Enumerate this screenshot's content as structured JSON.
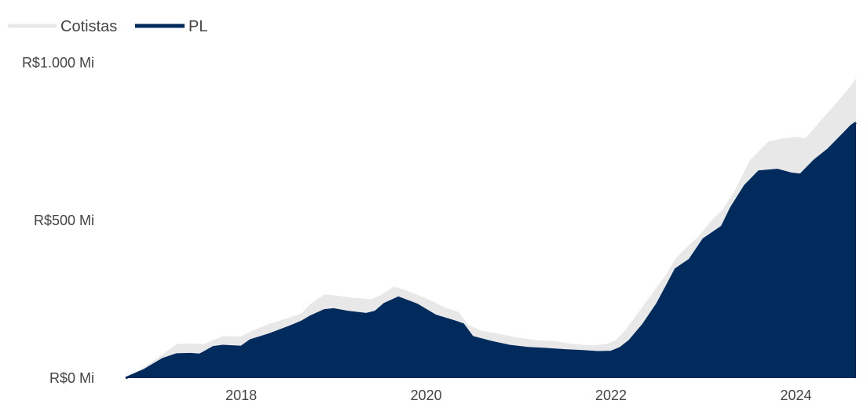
{
  "chart_data": {
    "type": "area",
    "title": "",
    "xlabel": "",
    "ylabel": "",
    "legend": {
      "placement": "top-left"
    },
    "grid": false,
    "xlim": [
      2016.75,
      2024.65
    ],
    "ylim": [
      0,
      1000
    ],
    "y_ticks": [
      0,
      500,
      1000
    ],
    "y_tick_labels": [
      "R$0 Mi",
      "R$500 Mi",
      "R$1.000 Mi"
    ],
    "x_ticks": [
      2018,
      2020,
      2022,
      2024
    ],
    "x_tick_labels": [
      "2018",
      "2020",
      "2022",
      "2024"
    ],
    "series": [
      {
        "name": "Cotistas",
        "color": "#e8e8e8",
        "points": [
          [
            2016.75,
            0
          ],
          [
            2016.95,
            35
          ],
          [
            2017.15,
            75
          ],
          [
            2017.3,
            108
          ],
          [
            2017.45,
            110
          ],
          [
            2017.6,
            108
          ],
          [
            2017.8,
            133
          ],
          [
            2018.0,
            132
          ],
          [
            2018.1,
            148
          ],
          [
            2018.3,
            172
          ],
          [
            2018.5,
            190
          ],
          [
            2018.65,
            205
          ],
          [
            2018.75,
            235
          ],
          [
            2018.9,
            265
          ],
          [
            2019.0,
            263
          ],
          [
            2019.2,
            255
          ],
          [
            2019.4,
            250
          ],
          [
            2019.5,
            262
          ],
          [
            2019.65,
            290
          ],
          [
            2019.75,
            282
          ],
          [
            2020.0,
            253
          ],
          [
            2020.2,
            225
          ],
          [
            2020.35,
            210
          ],
          [
            2020.45,
            170
          ],
          [
            2020.6,
            150
          ],
          [
            2020.8,
            140
          ],
          [
            2021.0,
            128
          ],
          [
            2021.2,
            120
          ],
          [
            2021.4,
            117
          ],
          [
            2021.6,
            108
          ],
          [
            2021.8,
            104
          ],
          [
            2021.95,
            108
          ],
          [
            2022.05,
            120
          ],
          [
            2022.15,
            150
          ],
          [
            2022.3,
            210
          ],
          [
            2022.45,
            270
          ],
          [
            2022.6,
            330
          ],
          [
            2022.7,
            380
          ],
          [
            2022.8,
            410
          ],
          [
            2022.95,
            450
          ],
          [
            2023.1,
            505
          ],
          [
            2023.2,
            530
          ],
          [
            2023.35,
            600
          ],
          [
            2023.5,
            690
          ],
          [
            2023.7,
            750
          ],
          [
            2023.85,
            760
          ],
          [
            2024.0,
            765
          ],
          [
            2024.1,
            760
          ],
          [
            2024.25,
            810
          ],
          [
            2024.4,
            860
          ],
          [
            2024.55,
            910
          ],
          [
            2024.65,
            950
          ]
        ]
      },
      {
        "name": "PL",
        "color": "#002b5c",
        "points": [
          [
            2016.75,
            0
          ],
          [
            2016.95,
            25
          ],
          [
            2017.15,
            60
          ],
          [
            2017.3,
            75
          ],
          [
            2017.45,
            76
          ],
          [
            2017.55,
            74
          ],
          [
            2017.7,
            98
          ],
          [
            2017.8,
            102
          ],
          [
            2018.0,
            99
          ],
          [
            2018.1,
            120
          ],
          [
            2018.3,
            138
          ],
          [
            2018.5,
            160
          ],
          [
            2018.65,
            178
          ],
          [
            2018.75,
            195
          ],
          [
            2018.9,
            215
          ],
          [
            2019.0,
            218
          ],
          [
            2019.15,
            210
          ],
          [
            2019.35,
            203
          ],
          [
            2019.45,
            210
          ],
          [
            2019.55,
            235
          ],
          [
            2019.7,
            255
          ],
          [
            2019.9,
            233
          ],
          [
            2020.1,
            198
          ],
          [
            2020.3,
            180
          ],
          [
            2020.4,
            170
          ],
          [
            2020.5,
            130
          ],
          [
            2020.7,
            115
          ],
          [
            2020.9,
            102
          ],
          [
            2021.1,
            95
          ],
          [
            2021.3,
            92
          ],
          [
            2021.5,
            88
          ],
          [
            2021.7,
            85
          ],
          [
            2021.85,
            82
          ],
          [
            2022.0,
            83
          ],
          [
            2022.1,
            95
          ],
          [
            2022.2,
            118
          ],
          [
            2022.35,
            170
          ],
          [
            2022.5,
            235
          ],
          [
            2022.6,
            290
          ],
          [
            2022.7,
            345
          ],
          [
            2022.85,
            375
          ],
          [
            2023.0,
            440
          ],
          [
            2023.1,
            460
          ],
          [
            2023.2,
            480
          ],
          [
            2023.3,
            540
          ],
          [
            2023.45,
            610
          ],
          [
            2023.6,
            655
          ],
          [
            2023.8,
            660
          ],
          [
            2023.95,
            648
          ],
          [
            2024.05,
            645
          ],
          [
            2024.2,
            690
          ],
          [
            2024.35,
            725
          ],
          [
            2024.5,
            770
          ],
          [
            2024.6,
            800
          ],
          [
            2024.65,
            810
          ]
        ]
      }
    ]
  }
}
